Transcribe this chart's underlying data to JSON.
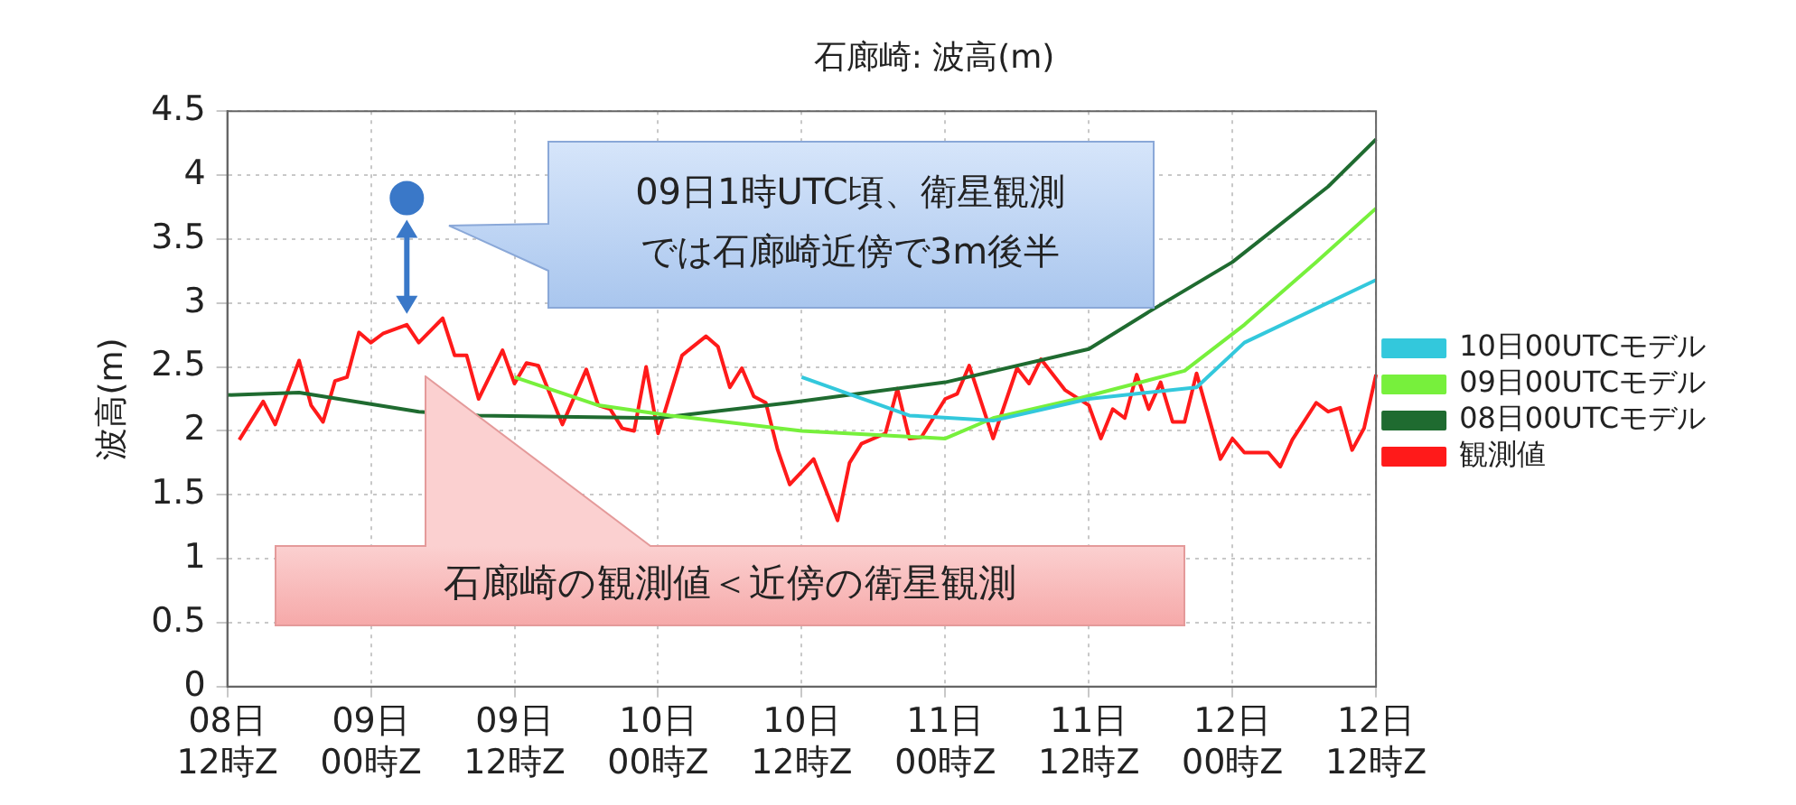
{
  "chart_data": {
    "type": "line",
    "title": "石廊崎: 波高(m)",
    "ylabel": "波高(m)",
    "categories": [
      "08日12時Z",
      null,
      null,
      null,
      null,
      null,
      null,
      null,
      null,
      null,
      null,
      null,
      "09日00時Z",
      null,
      null,
      null,
      null,
      null,
      null,
      null,
      null,
      null,
      null,
      null,
      "09日12時Z",
      null,
      null,
      null,
      null,
      null,
      null,
      null,
      null,
      null,
      null,
      null,
      "10日00時Z",
      null,
      null,
      null,
      null,
      null,
      null,
      null,
      null,
      null,
      null,
      null,
      "10日12時Z",
      null,
      null,
      null,
      null,
      null,
      null,
      null,
      null,
      null,
      null,
      null,
      "11日00時Z",
      null,
      null,
      null,
      null,
      null,
      null,
      null,
      null,
      null,
      null,
      null,
      "11日12時Z",
      null,
      null,
      null,
      null,
      null,
      null,
      null,
      null,
      null,
      null,
      null,
      "12日00時Z",
      null,
      null,
      null,
      null,
      null,
      null,
      null,
      null,
      null,
      null,
      null,
      "12日12時Z"
    ],
    "ylim": [
      0,
      4.5
    ],
    "yticks": [
      0,
      0.5,
      1,
      1.5,
      2,
      2.5,
      3,
      3.5,
      4,
      4.5
    ],
    "grid": true,
    "legend": "right",
    "marker": "none",
    "line_style": "solid",
    "series": [
      {
        "name": "10日00UTCモデル",
        "color": "#33c8dc",
        "values": [
          null,
          null,
          null,
          null,
          null,
          null,
          null,
          null,
          null,
          null,
          null,
          null,
          null,
          null,
          null,
          null,
          null,
          null,
          null,
          null,
          null,
          null,
          null,
          null,
          null,
          null,
          null,
          null,
          null,
          null,
          null,
          null,
          null,
          null,
          null,
          null,
          null,
          null,
          null,
          null,
          null,
          null,
          null,
          null,
          null,
          null,
          null,
          null,
          2.42,
          null,
          null,
          null,
          null,
          null,
          null,
          null,
          null,
          2.12,
          null,
          null,
          null,
          null,
          null,
          null,
          2.08,
          null,
          null,
          null,
          null,
          null,
          null,
          null,
          2.25,
          null,
          null,
          null,
          null,
          null,
          null,
          null,
          null,
          2.34,
          null,
          null,
          null,
          2.69,
          null,
          null,
          null,
          null,
          null,
          null,
          null,
          null,
          null,
          null,
          3.18
        ]
      },
      {
        "name": "09日00UTCモデル",
        "color": "#77f03c",
        "values": [
          null,
          null,
          null,
          null,
          null,
          null,
          null,
          null,
          null,
          null,
          null,
          null,
          null,
          null,
          null,
          null,
          null,
          null,
          null,
          null,
          null,
          null,
          null,
          null,
          2.42,
          null,
          null,
          null,
          null,
          null,
          null,
          2.2,
          null,
          null,
          null,
          null,
          null,
          2.12,
          null,
          null,
          null,
          null,
          null,
          null,
          null,
          null,
          null,
          null,
          2.0,
          null,
          null,
          null,
          null,
          null,
          null,
          null,
          null,
          null,
          null,
          null,
          1.94,
          null,
          null,
          null,
          2.1,
          null,
          null,
          null,
          null,
          null,
          null,
          2.25,
          null,
          null,
          null,
          null,
          null,
          null,
          null,
          null,
          2.47,
          null,
          null,
          null,
          null,
          2.83,
          null,
          null,
          null,
          null,
          null,
          3.32,
          null,
          null,
          null,
          null,
          3.74
        ]
      },
      {
        "name": "08日00UTCモデル",
        "color": "#1f6b30",
        "values": [
          2.28,
          null,
          null,
          null,
          null,
          null,
          2.3,
          null,
          null,
          null,
          null,
          null,
          null,
          null,
          null,
          null,
          2.15,
          null,
          null,
          null,
          null,
          2.12,
          null,
          null,
          null,
          null,
          null,
          null,
          null,
          null,
          null,
          null,
          null,
          null,
          null,
          null,
          2.1,
          null,
          null,
          null,
          null,
          null,
          null,
          null,
          null,
          null,
          null,
          2.22,
          null,
          null,
          null,
          null,
          null,
          null,
          null,
          null,
          null,
          null,
          null,
          null,
          2.38,
          null,
          null,
          null,
          null,
          null,
          null,
          null,
          null,
          null,
          null,
          null,
          2.64,
          null,
          null,
          null,
          null,
          2.93,
          null,
          null,
          null,
          null,
          null,
          null,
          3.32,
          null,
          null,
          null,
          null,
          null,
          null,
          null,
          3.91,
          null,
          null,
          null,
          4.28
        ]
      },
      {
        "name": "観測値",
        "color": "#ff1a1a",
        "values": [
          null,
          1.93,
          null,
          2.23,
          2.05,
          null,
          2.55,
          2.2,
          2.07,
          2.39,
          2.42,
          2.77,
          2.69,
          2.76,
          null,
          2.83,
          2.69,
          null,
          2.88,
          2.59,
          2.59,
          2.25,
          null,
          2.63,
          2.37,
          2.53,
          2.51,
          null,
          2.05,
          null,
          2.48,
          2.2,
          2.17,
          2.02,
          2.0,
          2.5,
          1.98,
          null,
          2.59,
          null,
          2.74,
          2.66,
          2.34,
          2.49,
          2.27,
          2.22,
          1.85,
          1.58,
          null,
          1.78,
          null,
          1.3,
          1.75,
          1.9,
          null,
          1.98,
          2.33,
          1.94,
          1.95,
          null,
          2.25,
          2.29,
          2.51,
          null,
          1.94,
          null,
          2.49,
          2.37,
          2.56,
          null,
          2.32,
          null,
          2.2,
          1.94,
          2.17,
          2.1,
          2.44,
          2.17,
          2.38,
          2.07,
          2.07,
          2.45,
          null,
          1.78,
          1.94,
          1.83,
          null,
          1.83,
          1.72,
          1.93,
          null,
          2.22,
          2.15,
          2.18,
          1.85,
          2.02,
          2.44
        ]
      },
      {
        "type": "scatter",
        "color": "#3a78c8",
        "marker": "circle",
        "values": [
          null,
          null,
          null,
          null,
          null,
          null,
          null,
          null,
          null,
          null,
          null,
          null,
          null,
          null,
          null,
          3.82,
          null,
          null,
          null,
          null,
          null,
          null,
          null,
          null,
          null,
          null,
          null,
          null,
          null,
          null,
          null,
          null,
          null,
          null,
          null,
          null,
          null,
          null,
          null,
          null,
          null,
          null,
          null,
          null,
          null,
          null,
          null,
          null,
          null,
          null,
          null,
          null,
          null,
          null,
          null,
          null,
          null,
          null,
          null,
          null,
          null,
          null,
          null,
          null,
          null,
          null,
          null,
          null,
          null,
          null,
          null,
          null,
          null,
          null,
          null,
          null,
          null,
          null,
          null,
          null,
          null,
          null,
          null,
          null,
          null,
          null,
          null,
          null,
          null,
          null,
          null,
          null,
          null,
          null,
          null,
          null,
          null
        ]
      }
    ],
    "annotations": [
      "09日1時UTC頃、衛星観測では石廊崎近傍で3m後半",
      "石廊崎の観測値＜近傍の衛星観測"
    ]
  }
}
